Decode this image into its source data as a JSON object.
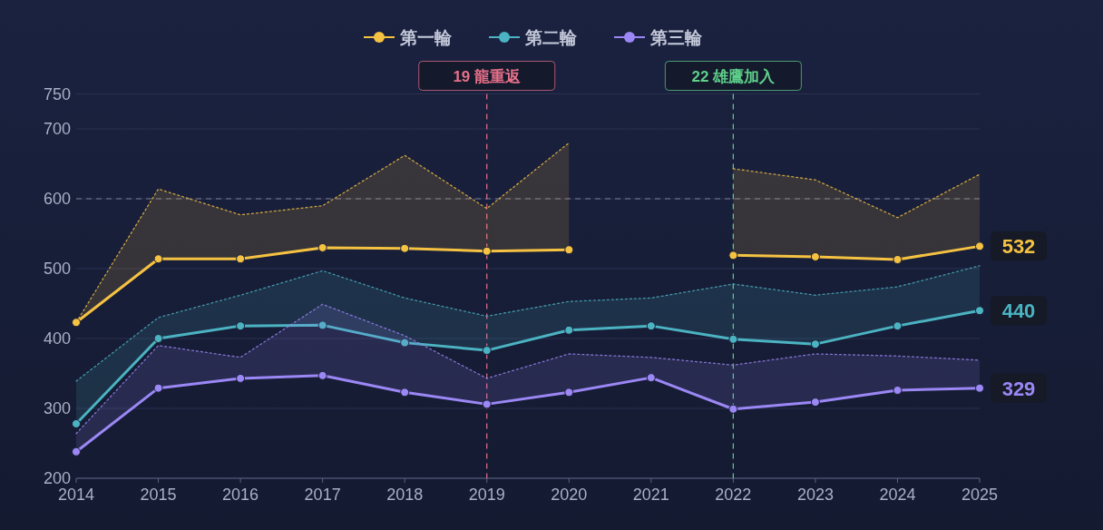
{
  "chart_data": {
    "type": "line",
    "x": [
      2014,
      2015,
      2016,
      2017,
      2018,
      2019,
      2020,
      2021,
      2022,
      2023,
      2024,
      2025
    ],
    "xlim": [
      2014,
      2025
    ],
    "xticks": [
      2014,
      2015,
      2016,
      2017,
      2018,
      2019,
      2020,
      2021,
      2022,
      2023,
      2024,
      2025
    ],
    "ylim": [
      200,
      750
    ],
    "yticks": [
      200,
      300,
      400,
      500,
      600,
      700,
      750
    ],
    "grid": "y",
    "legend": "top",
    "marker": "circle",
    "series": [
      {
        "name": "第一輪",
        "color": "#f5c242",
        "values": [
          423,
          514,
          514,
          530,
          529,
          525,
          527,
          null,
          519,
          517,
          513,
          532
        ],
        "lower": [
          423,
          514,
          514,
          530,
          529,
          525,
          527,
          null,
          519,
          517,
          513,
          532
        ],
        "upper": [
          423,
          614,
          577,
          590,
          662,
          586,
          680,
          null,
          643,
          627,
          573,
          635
        ],
        "value_labels": [
          null,
          null,
          null,
          null,
          null,
          null,
          null,
          null,
          null,
          null,
          null,
          "532"
        ]
      },
      {
        "name": "第二輪",
        "color": "#4bb3c2",
        "values": [
          278,
          400,
          418,
          419,
          394,
          383,
          412,
          418,
          399,
          392,
          418,
          440
        ],
        "lower": [
          278,
          400,
          418,
          419,
          394,
          383,
          412,
          418,
          399,
          392,
          418,
          440
        ],
        "upper": [
          339,
          430,
          462,
          497,
          458,
          432,
          453,
          458,
          478,
          462,
          474,
          504
        ],
        "value_labels": [
          null,
          null,
          null,
          null,
          null,
          null,
          null,
          null,
          null,
          null,
          null,
          "440"
        ]
      },
      {
        "name": "第三輪",
        "color": "#9b87f5",
        "values": [
          238,
          329,
          343,
          347,
          323,
          306,
          323,
          344,
          299,
          309,
          326,
          329
        ],
        "lower": [
          238,
          329,
          343,
          347,
          323,
          306,
          323,
          344,
          299,
          309,
          326,
          329
        ],
        "upper": [
          264,
          390,
          373,
          449,
          404,
          343,
          378,
          373,
          362,
          378,
          375,
          369
        ],
        "value_labels": [
          null,
          null,
          null,
          null,
          null,
          null,
          null,
          null,
          null,
          null,
          null,
          "329"
        ]
      },
      {
        "type": "line",
        "line_style": "dotted",
        "marker": "none",
        "color": "#f5c242",
        "values": [
          423,
          614,
          577,
          590,
          662,
          586,
          680,
          null,
          643,
          627,
          573,
          635
        ]
      },
      {
        "type": "line",
        "line_style": "dotted",
        "marker": "none",
        "color": "#4bb3c2",
        "values": [
          339,
          430,
          462,
          497,
          458,
          432,
          453,
          458,
          478,
          462,
          474,
          504
        ]
      },
      {
        "type": "line",
        "line_style": "dotted",
        "marker": "none",
        "color": "#9b87f5",
        "values": [
          264,
          390,
          373,
          449,
          404,
          343,
          378,
          373,
          362,
          378,
          375,
          369
        ]
      }
    ],
    "ref_lines": [
      {
        "axis": "y",
        "value": 600,
        "color": "#7a8090",
        "line_style": "dashed"
      },
      {
        "axis": "x",
        "value": 2019,
        "label": "19 龍重返",
        "color": "#e8708a",
        "line_style": "dashed"
      },
      {
        "axis": "x",
        "value": 2022,
        "label": "22 雄鷹加入",
        "color": "#5fd08a",
        "line_style": "dashed"
      }
    ]
  }
}
